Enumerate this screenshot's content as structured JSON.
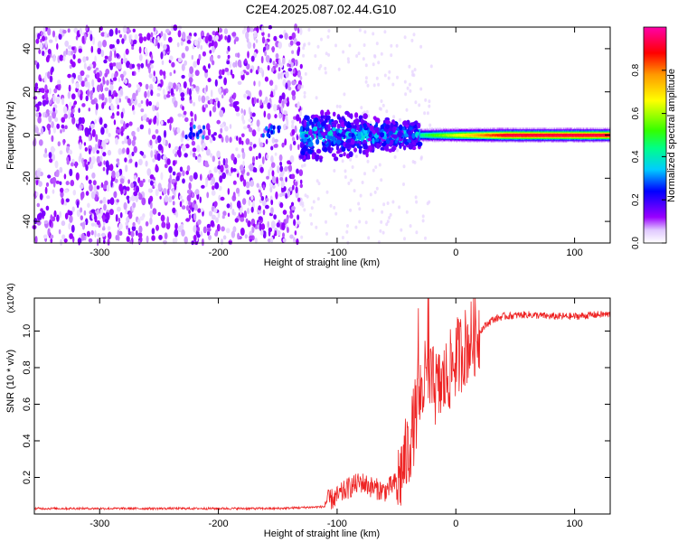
{
  "title": "C2E4.2025.087.02.44.G10",
  "chart_data": [
    {
      "type": "heatmap",
      "title": "C2E4.2025.087.02.44.G10",
      "xlabel": "Height of straight line (km)",
      "ylabel": "Frequency (Hz)",
      "xlim": [
        -355,
        130
      ],
      "ylim": [
        -50,
        50
      ],
      "x_ticks": [
        -300,
        -200,
        -100,
        0,
        100
      ],
      "x_tick_labels": [
        "-300",
        "-200",
        "-100",
        "0",
        "100"
      ],
      "y_ticks": [
        -40,
        -20,
        0,
        20,
        40
      ],
      "y_tick_labels": [
        "-40",
        "-20",
        "0",
        "20",
        "40"
      ],
      "colorbar": {
        "label": "Normalized spectral amplitude",
        "range": [
          0,
          1
        ],
        "ticks": [
          0.0,
          0.2,
          0.4,
          0.6,
          0.8
        ],
        "tick_labels": [
          "0.0",
          "0.2",
          "0.4",
          "0.6",
          "0.8"
        ],
        "colormap": "white-violet-blue-cyan-green-yellow-red-magenta"
      },
      "regions": [
        {
          "x_range": [
            -355,
            -130
          ],
          "freq_spread": [
            -50,
            50
          ],
          "amplitude": [
            0.0,
            0.15
          ],
          "description": "broadband noise"
        },
        {
          "x_range": [
            -130,
            -30
          ],
          "freq_spread": [
            -15,
            15
          ],
          "amplitude": [
            0.1,
            0.5
          ]
        },
        {
          "x_range": [
            -30,
            130
          ],
          "freq_spread": [
            -3,
            3
          ],
          "amplitude": [
            0.5,
            1.0
          ]
        }
      ],
      "grid": false
    },
    {
      "type": "line",
      "xlabel": "Height of straight line (km)",
      "ylabel": "SNR (10 * v/v)",
      "y_multiplier": "(x10^4)",
      "xlim": [
        -355,
        130
      ],
      "ylim": [
        0,
        1.18
      ],
      "x_ticks": [
        -300,
        -200,
        -100,
        0,
        100
      ],
      "x_tick_labels": [
        "-300",
        "-200",
        "-100",
        "0",
        "100"
      ],
      "y_ticks": [
        0.2,
        0.4,
        0.6,
        0.8,
        1.0
      ],
      "y_tick_labels": [
        "0.2",
        "0.4",
        "0.6",
        "0.8",
        "1.0"
      ],
      "color": "#ee2222",
      "x": [
        -355,
        -300,
        -250,
        -200,
        -150,
        -110,
        -100,
        -90,
        -80,
        -70,
        -60,
        -50,
        -45,
        -40,
        -35,
        -30,
        -25,
        -20,
        -15,
        -10,
        -5,
        0,
        10,
        20,
        30,
        40,
        60,
        80,
        100,
        120,
        130
      ],
      "y": [
        0.03,
        0.03,
        0.03,
        0.03,
        0.03,
        0.04,
        0.07,
        0.12,
        0.15,
        0.12,
        0.1,
        0.15,
        0.25,
        0.35,
        0.5,
        0.65,
        0.75,
        0.7,
        0.68,
        0.72,
        0.78,
        0.85,
        0.93,
        1.0,
        1.06,
        1.08,
        1.09,
        1.08,
        1.08,
        1.09,
        1.09
      ],
      "grid": false
    }
  ]
}
